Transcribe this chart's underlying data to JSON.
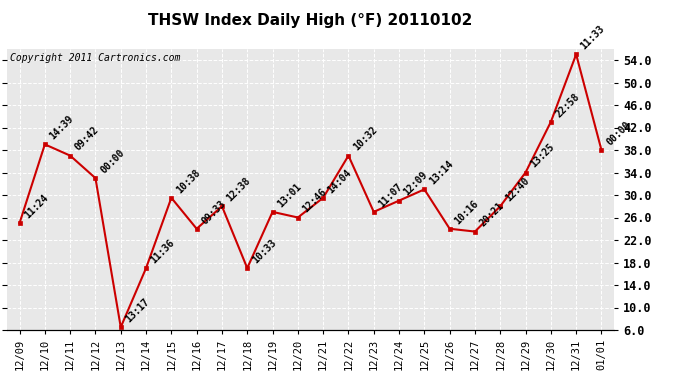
{
  "title": "THSW Index Daily High (°F) 20110102",
  "copyright": "Copyright 2011 Cartronics.com",
  "dates": [
    "12/09",
    "12/10",
    "12/11",
    "12/12",
    "12/13",
    "12/14",
    "12/15",
    "12/16",
    "12/17",
    "12/18",
    "12/19",
    "12/20",
    "12/21",
    "12/22",
    "12/23",
    "12/24",
    "12/25",
    "12/26",
    "12/27",
    "12/28",
    "12/29",
    "12/30",
    "12/31",
    "01/01"
  ],
  "values": [
    25.0,
    39.0,
    37.0,
    33.0,
    6.5,
    17.0,
    29.5,
    24.0,
    28.0,
    17.0,
    27.0,
    26.0,
    29.5,
    37.0,
    27.0,
    29.0,
    31.0,
    24.0,
    23.5,
    28.0,
    34.0,
    43.0,
    55.0,
    38.0
  ],
  "times": [
    "11:24",
    "14:39",
    "09:42",
    "00:00",
    "13:17",
    "11:36",
    "10:38",
    "09:33",
    "12:38",
    "10:33",
    "13:01",
    "12:46",
    "14:04",
    "10:32",
    "11:07",
    "12:09",
    "13:14",
    "10:16",
    "20:21",
    "12:40",
    "13:25",
    "22:58",
    "11:33",
    "00:00"
  ],
  "line_color": "#cc0000",
  "marker_color": "#cc0000",
  "bg_color": "#ffffff",
  "plot_bg_color": "#e8e8e8",
  "grid_color": "#ffffff",
  "ylim": [
    6.0,
    56.0
  ],
  "yticks": [
    6.0,
    10.0,
    14.0,
    18.0,
    22.0,
    26.0,
    30.0,
    34.0,
    38.0,
    42.0,
    46.0,
    50.0,
    54.0
  ],
  "title_fontsize": 11,
  "annotation_fontsize": 7,
  "copyright_fontsize": 7
}
